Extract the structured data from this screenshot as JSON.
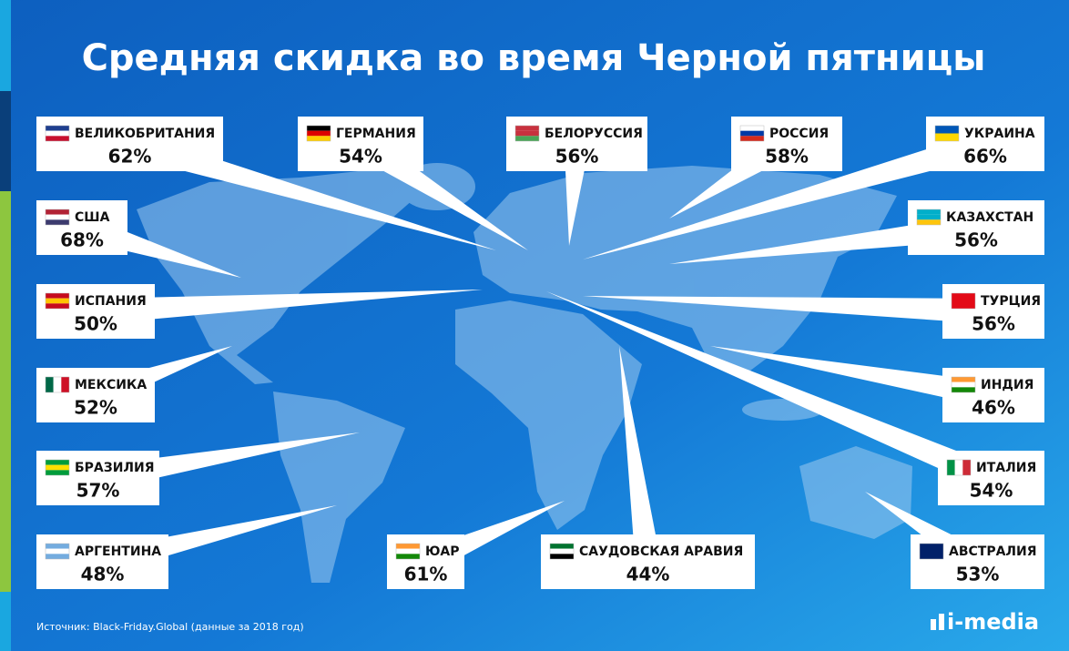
{
  "title": "Средняя скидка во время Черной пятницы",
  "countries": [
    {
      "name": "ВЕЛИКОБРИТАНИЯ",
      "value": "62%"
    },
    {
      "name": "ГЕРМАНИЯ",
      "value": "54%"
    },
    {
      "name": "БЕЛОРУССИЯ",
      "value": "56%"
    },
    {
      "name": "РОССИЯ",
      "value": "58%"
    },
    {
      "name": "УКРАИНА",
      "value": "66%"
    },
    {
      "name": "США",
      "value": "68%"
    },
    {
      "name": "КАЗАХСТАН",
      "value": "56%"
    },
    {
      "name": "ИСПАНИЯ",
      "value": "50%"
    },
    {
      "name": "ТУРЦИЯ",
      "value": "56%"
    },
    {
      "name": "МЕКСИКА",
      "value": "52%"
    },
    {
      "name": "ИНДИЯ",
      "value": "46%"
    },
    {
      "name": "БРАЗИЛИЯ",
      "value": "57%"
    },
    {
      "name": "ИТАЛИЯ",
      "value": "54%"
    },
    {
      "name": "АРГЕНТИНА",
      "value": "48%"
    },
    {
      "name": "ЮАР",
      "value": "61%"
    },
    {
      "name": "САУДОВСКАЯ АРАВИЯ",
      "value": "44%"
    },
    {
      "name": "АВСТРАЛИЯ",
      "value": "53%"
    }
  ],
  "source": "Источник: Black-Friday.Global (данные за 2018 год)",
  "logo": "i-media"
}
